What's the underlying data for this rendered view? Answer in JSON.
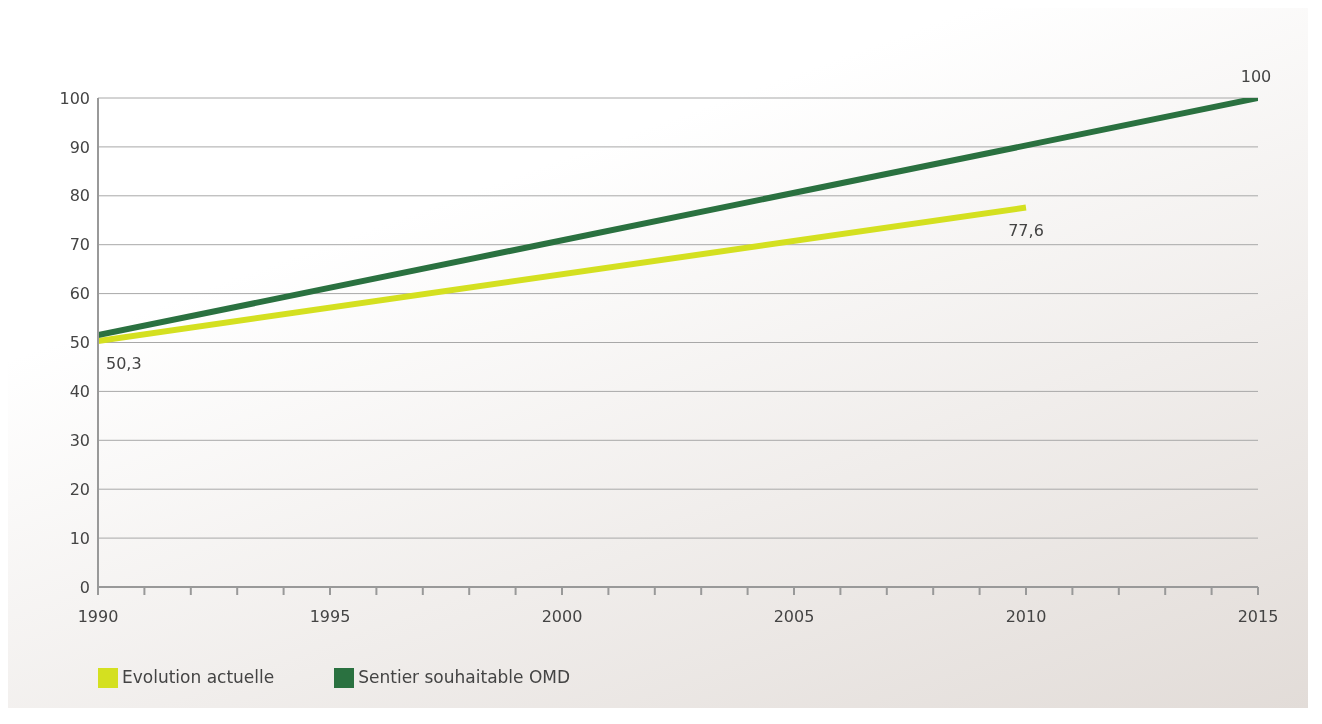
{
  "chart_data": {
    "type": "line",
    "series": [
      {
        "name": "Evolution actuelle",
        "color": "#d4e020",
        "x": [
          1990,
          2010
        ],
        "values": [
          50.3,
          77.6
        ],
        "value_labels": [
          "50,3",
          "77,6"
        ]
      },
      {
        "name": "Sentier souhaitable OMD",
        "color": "#2a7140",
        "x": [
          1990,
          2015
        ],
        "values": [
          51.5,
          100
        ],
        "value_labels": [
          null,
          "100"
        ]
      }
    ],
    "xlim": [
      1990,
      2015
    ],
    "xticks": [
      1990,
      {
        "value": 1991,
        "label": null
      },
      {
        "value": 1992,
        "label": null
      },
      {
        "value": 1993,
        "label": null
      },
      {
        "value": 1994,
        "label": null
      },
      1995,
      {
        "value": 1996,
        "label": null
      },
      {
        "value": 1997,
        "label": null
      },
      {
        "value": 1998,
        "label": null
      },
      {
        "value": 1999,
        "label": null
      },
      2000,
      {
        "value": 2001,
        "label": null
      },
      {
        "value": 2002,
        "label": null
      },
      {
        "value": 2003,
        "label": null
      },
      {
        "value": 2004,
        "label": null
      },
      2005,
      {
        "value": 2006,
        "label": null
      },
      {
        "value": 2007,
        "label": null
      },
      {
        "value": 2008,
        "label": null
      },
      {
        "value": 2009,
        "label": null
      },
      2010,
      {
        "value": 2011,
        "label": null
      },
      {
        "value": 2012,
        "label": null
      },
      {
        "value": 2013,
        "label": null
      },
      {
        "value": 2014,
        "label": null
      },
      2015
    ],
    "ylim": [
      0,
      100
    ],
    "yticks": [
      0,
      10,
      20,
      30,
      40,
      50,
      60,
      70,
      80,
      90,
      100
    ],
    "grid": "y",
    "legend": "bottom left",
    "marker": "none",
    "line_style": "solid"
  }
}
